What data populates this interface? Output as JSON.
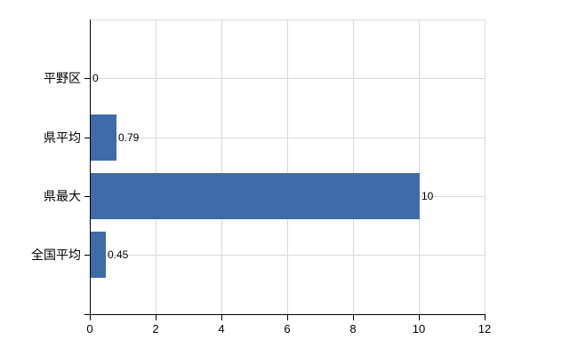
{
  "chart_data": {
    "type": "bar",
    "orientation": "horizontal",
    "title": "",
    "xlabel": "",
    "ylabel": "",
    "categories": [
      "平野区",
      "県平均",
      "県最大",
      "全国平均"
    ],
    "values": [
      0,
      0.79,
      10,
      0.45
    ],
    "value_labels": [
      "0",
      "0.79",
      "10",
      "0.45"
    ],
    "xlim": [
      0,
      12
    ],
    "xticks": [
      0,
      2,
      4,
      6,
      8,
      10,
      12
    ],
    "xtick_labels": [
      "0",
      "2",
      "4",
      "6",
      "8",
      "10",
      "12"
    ],
    "grid": true,
    "legend": "none",
    "bar_color": "#3e6ca6",
    "grid_color": "#d9d9d9",
    "axis_color": "#000000",
    "text_color": "#000000",
    "background_color": "#ffffff"
  }
}
